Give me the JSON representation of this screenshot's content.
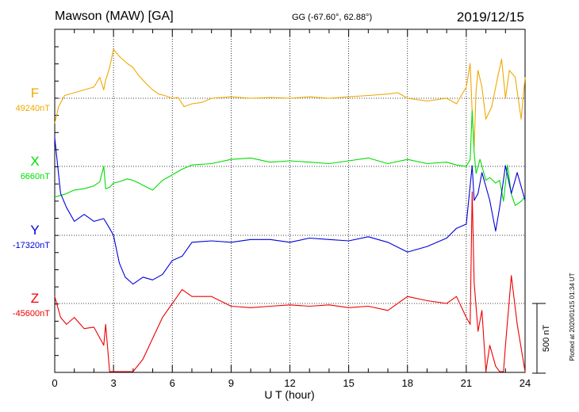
{
  "header": {
    "station": "Mawson (MAW)  [GA]",
    "coords": "GG (-67.60°,  62.88°)",
    "date": "2019/12/15"
  },
  "chart_data": {
    "type": "line",
    "title": "Mawson (MAW)  [GA]",
    "xlabel": "U T (hour)",
    "ylabel": "",
    "xlim": [
      0,
      24
    ],
    "x_ticks": [
      "0",
      "3",
      "6",
      "9",
      "12",
      "15",
      "18",
      "21",
      "24"
    ],
    "grid": true,
    "units": "nT",
    "scale_bar": {
      "label": "500 nT",
      "value": 500
    },
    "credit": "Plotted at 2020/01/15 01:34 UT",
    "colors": {
      "F": "#f0a800",
      "X": "#00dd00",
      "Y": "#0000dd",
      "Z": "#ee0000"
    },
    "series": [
      {
        "name": "F",
        "baseline_label": "49240nT",
        "color": "#f0a800",
        "x": [
          0,
          0.2,
          0.5,
          1,
          1.5,
          2,
          2.3,
          2.5,
          2.6,
          2.8,
          3,
          3.3,
          3.7,
          4,
          4.3,
          4.7,
          5,
          5.3,
          5.6,
          6,
          6.3,
          6.6,
          7,
          7.5,
          8,
          9,
          10,
          11,
          12,
          13,
          14,
          15,
          16,
          17,
          17.5,
          18,
          19,
          20,
          20.5,
          21,
          21.2,
          21.3,
          21.4,
          21.5,
          21.6,
          21.8,
          22,
          22.3,
          22.6,
          22.8,
          23,
          23.2,
          23.5,
          23.8,
          24
        ],
        "values": [
          -180,
          -60,
          20,
          40,
          60,
          80,
          150,
          60,
          130,
          220,
          350,
          300,
          250,
          220,
          160,
          100,
          60,
          30,
          20,
          0,
          5,
          -60,
          -40,
          -30,
          0,
          10,
          0,
          5,
          0,
          10,
          0,
          10,
          20,
          30,
          40,
          0,
          -20,
          0,
          -40,
          80,
          250,
          -100,
          -350,
          50,
          200,
          80,
          -150,
          -60,
          150,
          280,
          0,
          200,
          150,
          -150,
          150
        ]
      },
      {
        "name": "X",
        "baseline_label": "6660nT",
        "color": "#00dd00",
        "x": [
          0,
          0.5,
          1,
          1.5,
          2,
          2.3,
          2.5,
          2.6,
          2.8,
          3,
          3.3,
          3.7,
          4,
          4.3,
          4.7,
          5,
          5.5,
          6,
          6.5,
          7,
          8,
          9,
          10,
          11,
          12,
          13,
          14,
          15,
          16,
          17,
          18,
          19,
          20,
          20.5,
          21,
          21.2,
          21.3,
          21.4,
          21.5,
          21.7,
          22,
          22.2,
          22.5,
          22.7,
          22.9,
          23.1,
          23.3,
          23.5,
          23.8,
          24
        ],
        "values": [
          -220,
          -200,
          -170,
          -160,
          -140,
          -110,
          0,
          -160,
          -150,
          -120,
          -110,
          -90,
          -100,
          -120,
          -150,
          -170,
          -100,
          -60,
          -20,
          10,
          20,
          50,
          60,
          30,
          40,
          30,
          20,
          40,
          60,
          20,
          50,
          20,
          30,
          10,
          0,
          50,
          400,
          100,
          -50,
          50,
          -100,
          -80,
          -120,
          -100,
          -250,
          10,
          -200,
          -280,
          -250,
          -220
        ]
      },
      {
        "name": "Y",
        "baseline_label": "-17320nT",
        "color": "#0000dd",
        "x": [
          0,
          0.3,
          0.6,
          1,
          1.5,
          2,
          2.5,
          2.8,
          3,
          3.3,
          3.6,
          4,
          4.5,
          5,
          5.5,
          6,
          6.5,
          7,
          8,
          9,
          10,
          11,
          12,
          13,
          14,
          15,
          16,
          17,
          18,
          19,
          20,
          20.5,
          21,
          21.3,
          21.4,
          21.6,
          21.8,
          22,
          22.2,
          22.5,
          22.7,
          23,
          23.3,
          23.6,
          24
        ],
        "values": [
          700,
          300,
          200,
          100,
          150,
          100,
          120,
          50,
          0,
          -200,
          -300,
          -350,
          -300,
          -320,
          -280,
          -180,
          -150,
          -50,
          -40,
          -50,
          -30,
          -30,
          -50,
          -20,
          -30,
          -40,
          -10,
          -50,
          -120,
          -80,
          -20,
          50,
          80,
          500,
          250,
          300,
          450,
          350,
          250,
          30,
          200,
          500,
          300,
          450,
          250
        ]
      },
      {
        "name": "Z",
        "baseline_label": "-45600nT",
        "color": "#ee0000",
        "x": [
          0,
          0.3,
          0.6,
          1,
          1.5,
          2,
          2.5,
          2.6,
          2.8,
          3,
          3.3,
          3.6,
          4,
          4.5,
          5,
          5.5,
          6,
          6.5,
          7,
          8,
          9,
          10,
          11,
          12,
          13,
          14,
          15,
          16,
          17,
          18,
          19,
          20,
          20.5,
          21,
          21.2,
          21.3,
          21.4,
          21.6,
          21.8,
          22,
          22.2,
          22.5,
          22.7,
          22.9,
          23,
          23.3,
          23.6,
          24
        ],
        "values": [
          50,
          -100,
          -150,
          -100,
          -180,
          -170,
          -300,
          -150,
          -1000,
          -1100,
          -950,
          -750,
          -600,
          -400,
          -250,
          -100,
          0,
          100,
          50,
          50,
          -20,
          -30,
          -20,
          -10,
          -20,
          -10,
          -30,
          -20,
          -50,
          50,
          20,
          0,
          50,
          -100,
          -150,
          800,
          150,
          -200,
          -50,
          -500,
          -300,
          -450,
          -600,
          -900,
          -300,
          200,
          -150,
          -600
        ]
      }
    ]
  }
}
